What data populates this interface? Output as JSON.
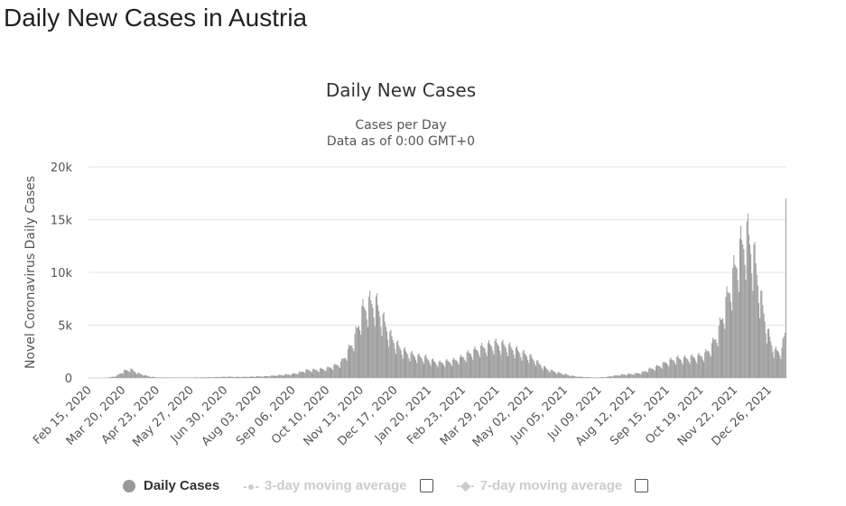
{
  "page_title": "Daily New Cases in Austria",
  "chart_data": {
    "type": "bar",
    "title": "Daily New Cases",
    "subtitle": [
      "Cases per Day",
      "Data as of 0:00 GMT+0"
    ],
    "ylabel": "Novel Coronavirus Daily Cases",
    "xlabel": "",
    "ylim": [
      0,
      20000
    ],
    "yticks": [
      0,
      5000,
      10000,
      15000,
      20000
    ],
    "ytick_labels": [
      "0",
      "5k",
      "10k",
      "15k",
      "20k"
    ],
    "grid": true,
    "start_date": "Feb 15, 2020",
    "days": 698,
    "xtick_labels": [
      "Feb 15, 2020",
      "Mar 20, 2020",
      "Apr 23, 2020",
      "May 27, 2020",
      "Jun 30, 2020",
      "Aug 03, 2020",
      "Sep 06, 2020",
      "Oct 10, 2020",
      "Nov 13, 2020",
      "Dec 17, 2020",
      "Jan 20, 2021",
      "Feb 23, 2021",
      "Mar 29, 2021",
      "May 02, 2021",
      "Jun 05, 2021",
      "Jul 09, 2021",
      "Aug 12, 2021",
      "Sep 15, 2021",
      "Oct 19, 2021",
      "Nov 22, 2021",
      "Dec 26, 2021"
    ],
    "xtick_interval_days": 34,
    "weekly_avg_values": [
      0,
      0,
      0,
      50,
      200,
      650,
      800,
      450,
      250,
      100,
      50,
      50,
      40,
      30,
      30,
      50,
      60,
      70,
      80,
      100,
      120,
      100,
      100,
      120,
      150,
      150,
      200,
      250,
      300,
      350,
      500,
      700,
      750,
      800,
      900,
      1100,
      1400,
      2500,
      3800,
      6200,
      7000,
      7000,
      5500,
      4000,
      3100,
      2500,
      2200,
      2000,
      1900,
      1600,
      1400,
      1500,
      1600,
      1800,
      2200,
      2500,
      2800,
      3000,
      3200,
      3100,
      2900,
      2600,
      2300,
      2000,
      1500,
      1000,
      700,
      500,
      350,
      200,
      120,
      80,
      50,
      50,
      100,
      200,
      300,
      350,
      400,
      500,
      800,
      1000,
      1300,
      1600,
      1800,
      1800,
      1900,
      2000,
      2200,
      3000,
      4500,
      7000,
      9500,
      12000,
      13500,
      11500,
      7500,
      4200,
      2500,
      2600,
      6500
    ],
    "weekday_factors": [
      1.1,
      1.18,
      1.05,
      1.0,
      0.95,
      0.82,
      0.7
    ],
    "last_value": 17000,
    "series_name": "Daily Cases",
    "bar_color": "#999999"
  },
  "legend": {
    "items": [
      "Daily Cases",
      "3-day moving average",
      "7-day moving average"
    ]
  }
}
